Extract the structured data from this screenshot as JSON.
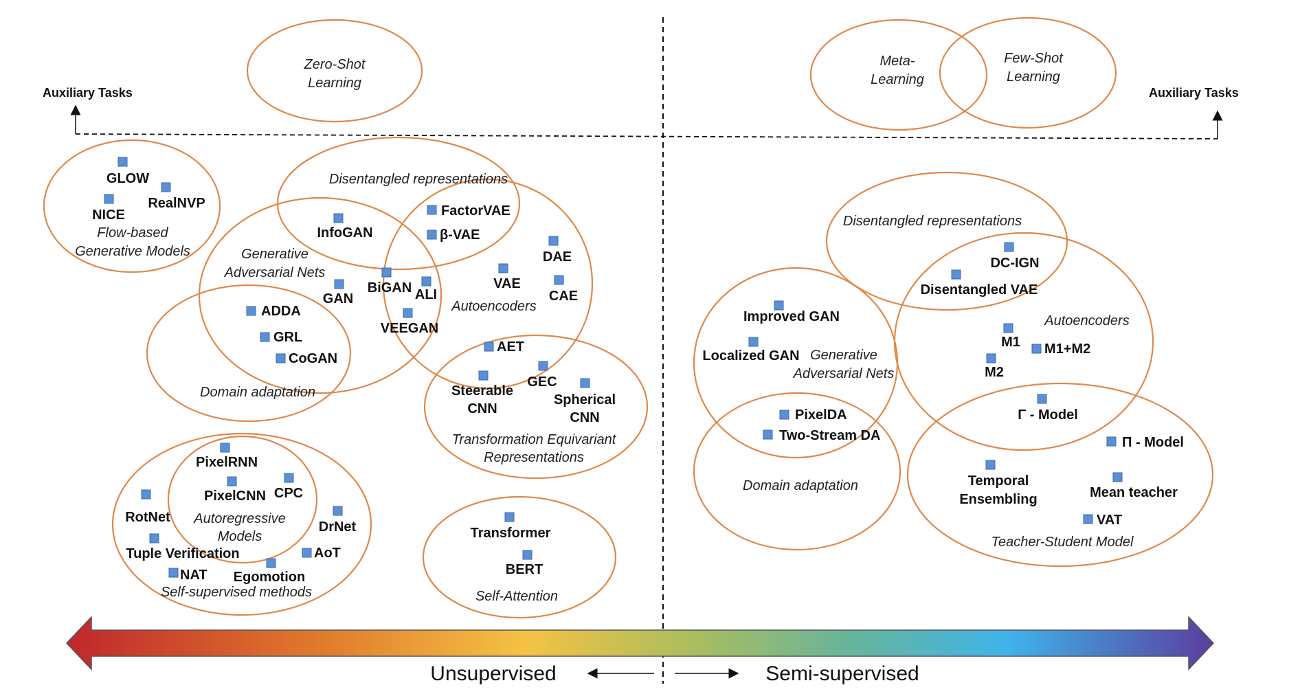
{
  "auxiliary_left": "Auxiliary Tasks",
  "auxiliary_right": "Auxiliary Tasks",
  "bottom_left_label": "Unsupervised",
  "bottom_right_label": "Semi-supervised",
  "colors": {
    "oval_stroke": "#e0884a",
    "marker_fill": "#5b8fd6",
    "gradient": [
      "#c0272d",
      "#e07a2c",
      "#f4c244",
      "#7fb580",
      "#3fb4ea",
      "#5a3e9e"
    ]
  },
  "groups": [
    {
      "id": "zero-shot",
      "caption": [
        "Zero-Shot",
        "Learning"
      ]
    },
    {
      "id": "meta-learning",
      "caption": [
        "Meta-",
        "Learning"
      ]
    },
    {
      "id": "few-shot",
      "caption": [
        "Few-Shot",
        "Learning"
      ]
    },
    {
      "id": "flow",
      "caption": [
        "Flow-based",
        "Generative Models"
      ]
    },
    {
      "id": "disentangled-left",
      "caption": [
        "Disentangled representations"
      ]
    },
    {
      "id": "gan-left",
      "caption": [
        "Generative",
        "Adversarial Nets"
      ]
    },
    {
      "id": "autoencoders-left",
      "caption": [
        "Autoencoders"
      ]
    },
    {
      "id": "domain-left",
      "caption": [
        "Domain adaptation"
      ]
    },
    {
      "id": "transformation",
      "caption": [
        "Transformation Equivariant",
        "Representations"
      ]
    },
    {
      "id": "self-supervised",
      "caption": [
        "Self-supervised methods"
      ]
    },
    {
      "id": "autoregressive",
      "caption": [
        "Autoregressive",
        "Models"
      ]
    },
    {
      "id": "self-attention",
      "caption": [
        "Self-Attention"
      ]
    },
    {
      "id": "disentangled-right",
      "caption": [
        "Disentangled representations"
      ]
    },
    {
      "id": "autoencoders-right",
      "caption": [
        "Autoencoders"
      ]
    },
    {
      "id": "gan-right",
      "caption": [
        "Generative",
        "Adversarial Nets"
      ]
    },
    {
      "id": "domain-right",
      "caption": [
        "Domain adaptation"
      ]
    },
    {
      "id": "teacher-student",
      "caption": [
        "Teacher-Student Model"
      ]
    }
  ],
  "methods": [
    {
      "id": "glow",
      "label": [
        "GLOW"
      ]
    },
    {
      "id": "realnvp",
      "label": [
        "RealNVP"
      ]
    },
    {
      "id": "nice",
      "label": [
        "NICE"
      ]
    },
    {
      "id": "infogan",
      "label": [
        "InfoGAN"
      ]
    },
    {
      "id": "factorvae",
      "label": [
        "FactorVAE"
      ]
    },
    {
      "id": "beta-vae",
      "label": [
        "β-VAE"
      ]
    },
    {
      "id": "dae",
      "label": [
        "DAE"
      ]
    },
    {
      "id": "vae",
      "label": [
        "VAE"
      ]
    },
    {
      "id": "cae",
      "label": [
        "CAE"
      ]
    },
    {
      "id": "bigan",
      "label": [
        "BiGAN"
      ]
    },
    {
      "id": "ali",
      "label": [
        "ALI"
      ]
    },
    {
      "id": "veegan",
      "label": [
        "VEEGAN"
      ]
    },
    {
      "id": "gan",
      "label": [
        "GAN"
      ]
    },
    {
      "id": "adda",
      "label": [
        "ADDA"
      ]
    },
    {
      "id": "grl",
      "label": [
        "GRL"
      ]
    },
    {
      "id": "cogan",
      "label": [
        "CoGAN"
      ]
    },
    {
      "id": "aet",
      "label": [
        "AET"
      ]
    },
    {
      "id": "steerable-cnn",
      "label": [
        "Steerable",
        "CNN"
      ]
    },
    {
      "id": "gec",
      "label": [
        "GEC"
      ]
    },
    {
      "id": "spherical-cnn",
      "label": [
        "Spherical",
        "CNN"
      ]
    },
    {
      "id": "pixelrnn",
      "label": [
        "PixelRNN"
      ]
    },
    {
      "id": "pixelcnn",
      "label": [
        "PixelCNN"
      ]
    },
    {
      "id": "cpc",
      "label": [
        "CPC"
      ]
    },
    {
      "id": "rotnet",
      "label": [
        "RotNet"
      ]
    },
    {
      "id": "drnet",
      "label": [
        "DrNet"
      ]
    },
    {
      "id": "tuple-verification",
      "label": [
        "Tuple Verification"
      ]
    },
    {
      "id": "aot",
      "label": [
        "AoT"
      ]
    },
    {
      "id": "nat",
      "label": [
        "NAT"
      ]
    },
    {
      "id": "egomotion",
      "label": [
        "Egomotion"
      ]
    },
    {
      "id": "transformer",
      "label": [
        "Transformer"
      ]
    },
    {
      "id": "bert",
      "label": [
        "BERT"
      ]
    },
    {
      "id": "dc-ign",
      "label": [
        "DC-IGN"
      ]
    },
    {
      "id": "disentangled-vae",
      "label": [
        "Disentangled VAE"
      ]
    },
    {
      "id": "improved-gan",
      "label": [
        "Improved GAN"
      ]
    },
    {
      "id": "localized-gan",
      "label": [
        "Localized GAN"
      ]
    },
    {
      "id": "m1",
      "label": [
        "M1"
      ]
    },
    {
      "id": "m1-m2",
      "label": [
        "M1+M2"
      ]
    },
    {
      "id": "m2",
      "label": [
        "M2"
      ]
    },
    {
      "id": "pixelda",
      "label": [
        "PixelDA"
      ]
    },
    {
      "id": "two-stream-da",
      "label": [
        "Two-Stream DA"
      ]
    },
    {
      "id": "gamma-model",
      "label": [
        "Γ - Model"
      ]
    },
    {
      "id": "pi-model",
      "label": [
        "Π - Model"
      ]
    },
    {
      "id": "temporal-ensembling",
      "label": [
        "Temporal",
        "Ensembling"
      ]
    },
    {
      "id": "mean-teacher",
      "label": [
        "Mean teacher"
      ]
    },
    {
      "id": "vat",
      "label": [
        "VAT"
      ]
    }
  ]
}
